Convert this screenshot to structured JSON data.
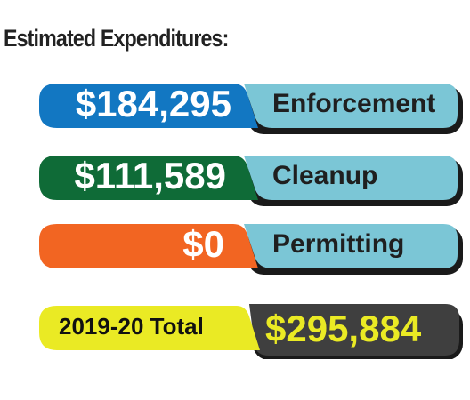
{
  "title": "Estimated Expenditures:",
  "colors": {
    "enforcement": "#1277c2",
    "cleanup": "#0f6b37",
    "permitting": "#f26522",
    "label_bg": "#7bc6d6",
    "total_label_bg": "#eaea24",
    "total_value_bg": "#3f3f3f",
    "total_value_text": "#eaea24",
    "shadow": "#1a1a1a"
  },
  "chart_data": {
    "type": "bar",
    "title": "Estimated Expenditures:",
    "categories": [
      "Enforcement",
      "Cleanup",
      "Permitting"
    ],
    "values": [
      184295,
      111589,
      0
    ],
    "value_labels": [
      "$184,295",
      "$111,589",
      "$0"
    ],
    "total": {
      "label": "2019-20 Total",
      "value": 295884,
      "value_label": "$295,884"
    }
  }
}
